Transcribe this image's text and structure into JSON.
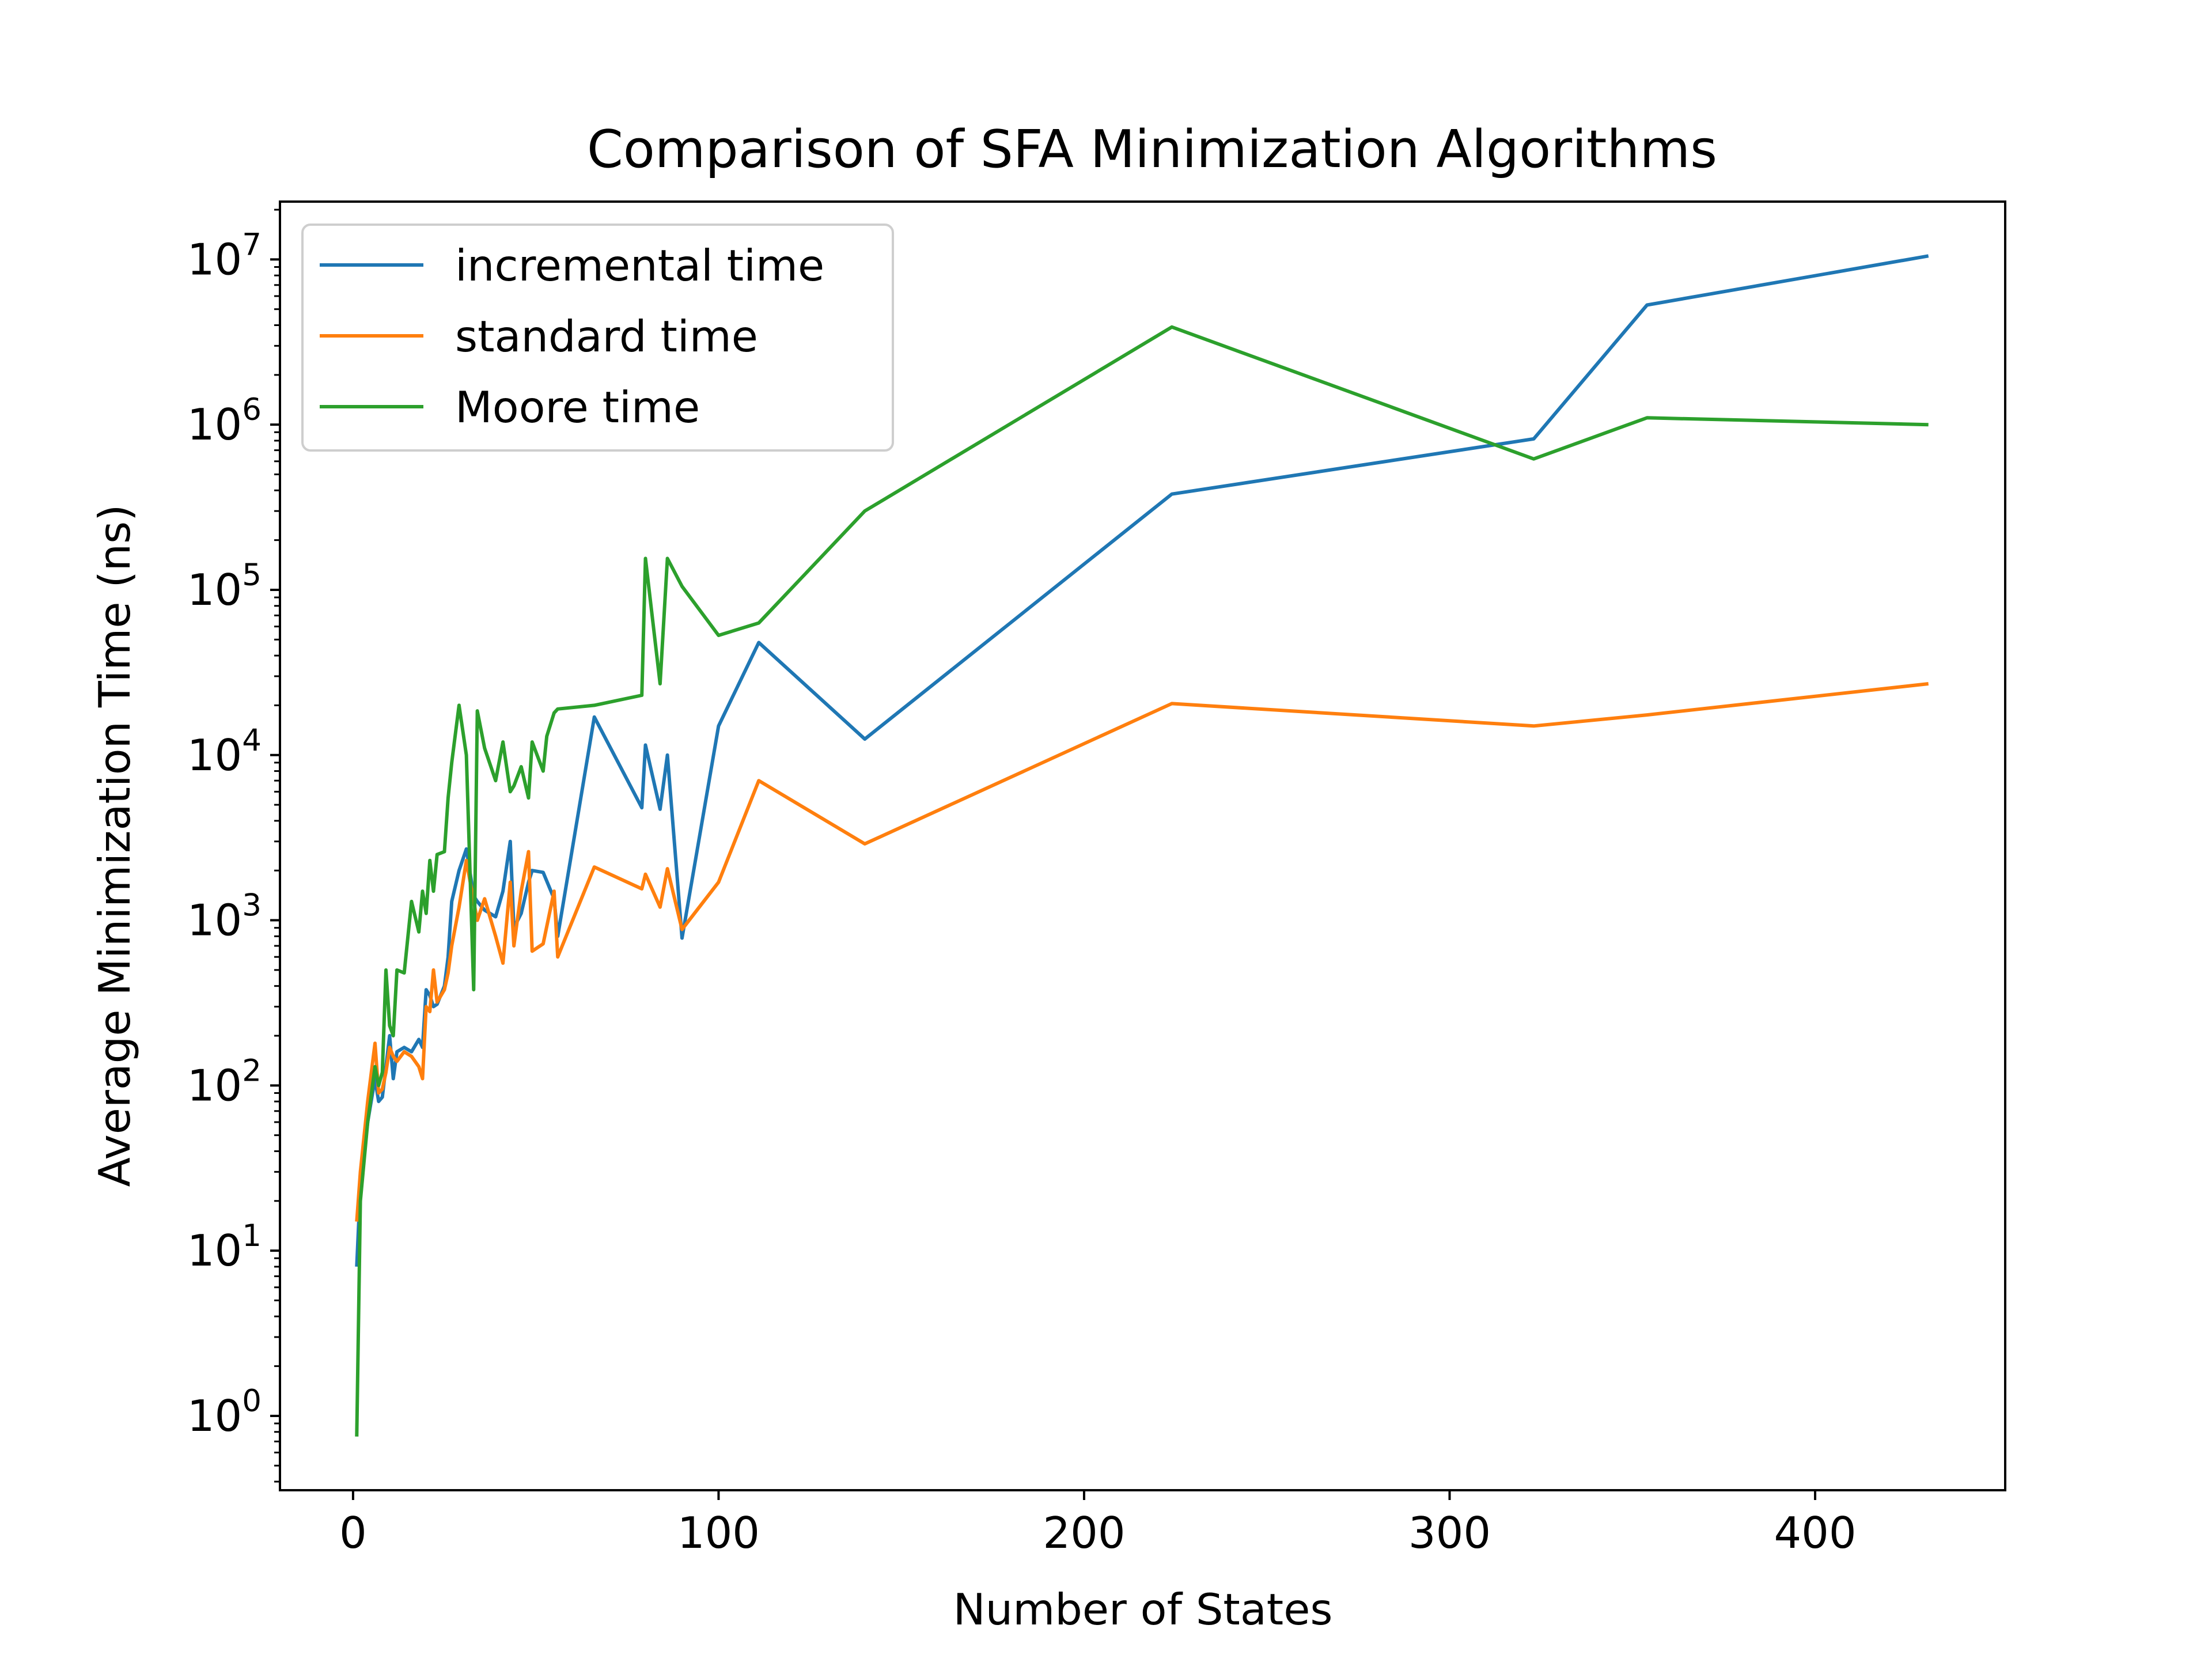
{
  "chart_data": {
    "type": "line",
    "title": "Comparison of SFA Minimization Algorithms",
    "xlabel": "Number of States",
    "ylabel": "Average Minimization Time (ns)",
    "xlim": [
      -20,
      452
    ],
    "ylim_log10": [
      -0.45,
      7.35
    ],
    "yscale": "log",
    "grid": false,
    "legend_position": "top-left",
    "xticks": [
      0,
      100,
      200,
      300,
      400
    ],
    "xtick_labels": [
      "0",
      "100",
      "200",
      "300",
      "400"
    ],
    "yticks_exp": [
      0,
      1,
      2,
      3,
      4,
      5,
      6,
      7
    ],
    "ytick_base": "10",
    "ytick_exponents": [
      "0",
      "1",
      "2",
      "3",
      "4",
      "5",
      "6",
      "7"
    ],
    "series": [
      {
        "name": "incremental time",
        "color": "#1f77b4",
        "x": [
          1,
          2,
          4,
          6,
          7,
          8,
          9,
          10,
          11,
          12,
          14,
          16,
          18,
          19,
          20,
          21,
          22,
          23,
          25,
          26,
          27,
          29,
          31,
          33,
          34,
          36,
          39,
          41,
          43,
          44,
          46,
          48,
          49,
          52,
          55,
          56,
          66,
          79,
          80,
          84,
          86,
          90,
          100,
          111,
          140,
          224,
          323,
          354,
          431
        ],
        "y": [
          8,
          25,
          60,
          110,
          80,
          85,
          130,
          200,
          110,
          160,
          170,
          160,
          190,
          170,
          380,
          350,
          300,
          310,
          400,
          600,
          1300,
          2000,
          2700,
          1400,
          1300,
          1150,
          1050,
          1500,
          3000,
          900,
          1100,
          1700,
          2000,
          1950,
          1350,
          800,
          17000,
          4800,
          11500,
          4700,
          10000,
          780,
          15000,
          48000,
          12500,
          380000,
          820000,
          5300000,
          10500000
        ]
      },
      {
        "name": "standard time",
        "color": "#ff7f0e",
        "x": [
          1,
          2,
          4,
          6,
          7,
          8,
          9,
          10,
          11,
          12,
          14,
          16,
          18,
          19,
          20,
          21,
          22,
          23,
          25,
          26,
          27,
          29,
          31,
          33,
          34,
          36,
          39,
          41,
          43,
          44,
          46,
          48,
          49,
          52,
          55,
          56,
          66,
          79,
          80,
          84,
          86,
          90,
          100,
          111,
          140,
          224,
          323,
          354,
          431
        ],
        "y": [
          15,
          30,
          80,
          180,
          90,
          95,
          120,
          170,
          150,
          140,
          160,
          150,
          130,
          110,
          300,
          280,
          500,
          320,
          380,
          480,
          700,
          1200,
          2300,
          1300,
          1000,
          1350,
          800,
          550,
          1700,
          700,
          1500,
          2600,
          650,
          720,
          1500,
          600,
          2100,
          1550,
          1900,
          1200,
          2050,
          880,
          1700,
          7000,
          2900,
          20500,
          15000,
          17500,
          27000
        ]
      },
      {
        "name": "Moore time",
        "color": "#2ca02c",
        "x": [
          1,
          2,
          4,
          6,
          7,
          8,
          9,
          10,
          11,
          12,
          14,
          16,
          18,
          19,
          20,
          21,
          22,
          23,
          25,
          26,
          27,
          29,
          31,
          33,
          34,
          36,
          39,
          41,
          43,
          44,
          46,
          48,
          49,
          52,
          53,
          55,
          56,
          66,
          79,
          80,
          84,
          86,
          90,
          100,
          111,
          140,
          224,
          323,
          354,
          431
        ],
        "y": [
          0.75,
          20,
          60,
          130,
          100,
          120,
          500,
          230,
          200,
          500,
          480,
          1300,
          850,
          1500,
          1100,
          2300,
          1500,
          2500,
          2600,
          5500,
          9000,
          20000,
          10000,
          380,
          18500,
          11000,
          7000,
          12000,
          6000,
          6500,
          8500,
          5500,
          12000,
          8000,
          13000,
          18000,
          19000,
          20000,
          23000,
          155000,
          27000,
          155000,
          105000,
          53000,
          63000,
          300000,
          3900000,
          620000,
          1100000,
          1000000
        ]
      }
    ]
  }
}
